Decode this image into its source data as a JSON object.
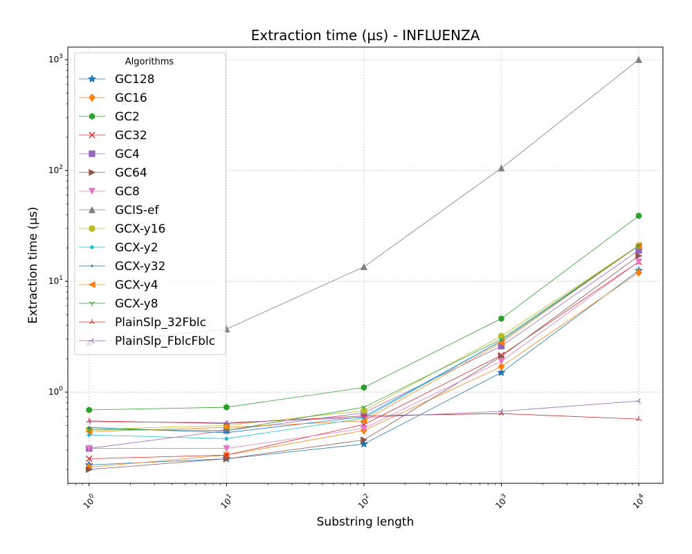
{
  "chart_data": {
    "type": "line",
    "title": "Extraction time (µs) - INFLUENZA",
    "xlabel": "Substring length",
    "ylabel": "Extraction time (µs)",
    "xscale": "log",
    "yscale": "log",
    "xlim": [
      0.7,
      15000
    ],
    "ylim": [
      0.15,
      1300
    ],
    "x": [
      1,
      10,
      100,
      1000,
      10000
    ],
    "x_tick_labels": [
      "10^0",
      "10^1",
      "10^2",
      "10^3",
      "10^4"
    ],
    "y_tick_labels": [
      "10^0",
      "10^1",
      "10^2",
      "10^3"
    ],
    "grid": true,
    "legend_title": "Algorithms",
    "legend_position": "upper-left",
    "series": [
      {
        "name": "GC128",
        "color": "#1f77b4",
        "marker": "star",
        "values": [
          0.22,
          0.25,
          0.34,
          1.5,
          12.5
        ]
      },
      {
        "name": "GC16",
        "color": "#ff7f0e",
        "marker": "diamond",
        "values": [
          0.21,
          0.27,
          0.45,
          1.7,
          12
        ]
      },
      {
        "name": "GC2",
        "color": "#2ca02c",
        "marker": "hexagon",
        "values": [
          0.69,
          0.73,
          1.1,
          4.6,
          39
        ]
      },
      {
        "name": "GC32",
        "color": "#d62728",
        "marker": "x",
        "values": [
          0.25,
          0.27,
          0.51,
          2.15,
          15
        ]
      },
      {
        "name": "GC4",
        "color": "#9467bd",
        "marker": "square",
        "values": [
          0.31,
          0.45,
          0.65,
          2.6,
          19
        ]
      },
      {
        "name": "GC64",
        "color": "#8c564b",
        "marker": "triangle-right",
        "values": [
          0.2,
          0.25,
          0.37,
          2.1,
          17
        ]
      },
      {
        "name": "GC8",
        "color": "#e377c2",
        "marker": "triangle-down",
        "values": [
          0.31,
          0.31,
          0.47,
          1.9,
          15
        ]
      },
      {
        "name": "GCIS-ef",
        "color": "#7f7f7f",
        "marker": "triangle-up",
        "values": [
          2.8,
          3.7,
          13.5,
          105,
          1000
        ]
      },
      {
        "name": "GCX-y16",
        "color": "#bcbd22",
        "marker": "circle",
        "values": [
          0.46,
          0.5,
          0.68,
          3.2,
          21
        ]
      },
      {
        "name": "GCX-y2",
        "color": "#17becf",
        "marker": "point",
        "values": [
          0.41,
          0.38,
          0.58,
          2.9,
          21
        ]
      },
      {
        "name": "GCX-y32",
        "color": "#1f77b4",
        "marker": "pixel",
        "values": [
          0.48,
          0.43,
          0.6,
          2.9,
          21
        ]
      },
      {
        "name": "GCX-y4",
        "color": "#ff7f0e",
        "marker": "triangle-left",
        "values": [
          0.44,
          0.48,
          0.55,
          2.8,
          21
        ]
      },
      {
        "name": "GCX-y8",
        "color": "#2ca02c",
        "marker": "tri-down",
        "values": [
          0.46,
          0.45,
          0.73,
          3.0,
          21
        ]
      },
      {
        "name": "PlainSlp_32Fblc",
        "color": "#d62728",
        "marker": "tri-up",
        "values": [
          0.55,
          0.52,
          0.61,
          0.64,
          0.57
        ]
      },
      {
        "name": "PlainSlp_FblcFblc",
        "color": "#9467bd",
        "marker": "tri-left",
        "values": [
          0.54,
          0.53,
          0.59,
          0.67,
          0.83
        ]
      }
    ]
  }
}
